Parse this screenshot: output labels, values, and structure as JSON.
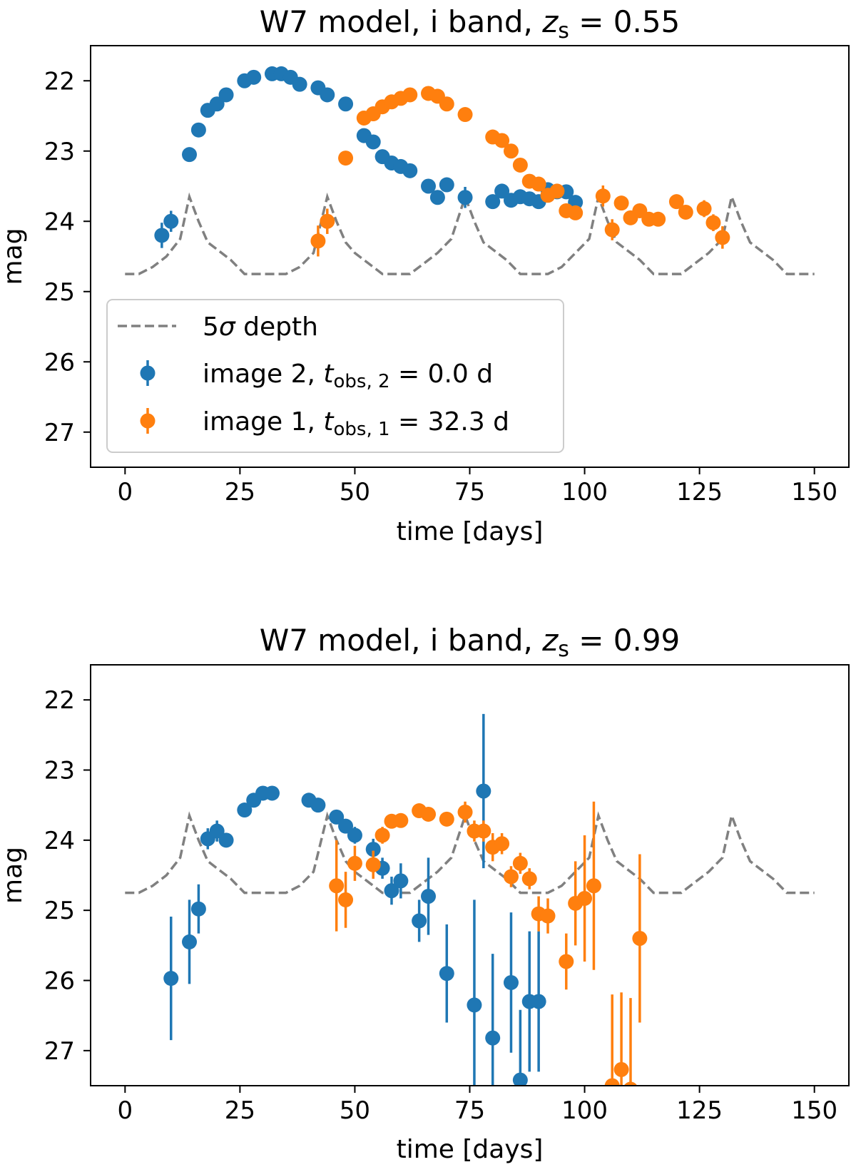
{
  "colors": {
    "image2": "#1f77b4",
    "image1": "#ff7f0e",
    "depth": "#808080"
  },
  "chart_data": [
    {
      "type": "scatter",
      "title": "W7 model, i band, z_s = 0.55",
      "title_parts": {
        "prefix": "W7 model, i band, ",
        "var": "z",
        "sub": "s",
        "suffix": " = 0.55"
      },
      "xlabel": "time [days]",
      "ylabel": "mag",
      "xlim": [
        -7.5,
        157.5
      ],
      "ylim": [
        27.5,
        21.5
      ],
      "xticks": [
        0,
        25,
        50,
        75,
        100,
        125,
        150
      ],
      "yticks": [
        22,
        23,
        24,
        25,
        26,
        27
      ],
      "legend": {
        "placement": "lower-left",
        "entries": [
          {
            "key": "depth",
            "pre": "5",
            "sym": "σ",
            "post": " depth"
          },
          {
            "key": "image2",
            "pre": "image 2, ",
            "var": "t",
            "sub": "obs, 2",
            "post": " = 0.0 d"
          },
          {
            "key": "image1",
            "pre": "image 1, ",
            "var": "t",
            "sub": "obs, 1",
            "post": " = 32.3 d"
          }
        ]
      },
      "depth": [
        [
          0,
          24.75
        ],
        [
          3,
          24.75
        ],
        [
          6,
          24.65
        ],
        [
          9,
          24.5
        ],
        [
          12,
          24.25
        ],
        [
          14,
          23.65
        ],
        [
          16,
          24.0
        ],
        [
          18,
          24.3
        ],
        [
          20,
          24.4
        ],
        [
          23,
          24.55
        ],
        [
          26,
          24.75
        ],
        [
          29,
          24.75
        ],
        [
          32,
          24.75
        ],
        [
          35,
          24.75
        ],
        [
          38,
          24.65
        ],
        [
          41,
          24.45
        ],
        [
          44,
          23.65
        ],
        [
          46,
          24.0
        ],
        [
          48,
          24.3
        ],
        [
          50,
          24.45
        ],
        [
          53,
          24.6
        ],
        [
          56,
          24.75
        ],
        [
          62,
          24.75
        ],
        [
          65,
          24.6
        ],
        [
          68,
          24.45
        ],
        [
          71,
          24.25
        ],
        [
          74,
          23.65
        ],
        [
          76,
          24.0
        ],
        [
          78,
          24.3
        ],
        [
          80,
          24.4
        ],
        [
          83,
          24.55
        ],
        [
          86,
          24.75
        ],
        [
          92,
          24.75
        ],
        [
          95,
          24.65
        ],
        [
          98,
          24.45
        ],
        [
          101,
          24.25
        ],
        [
          103,
          23.65
        ],
        [
          105,
          24.0
        ],
        [
          107,
          24.3
        ],
        [
          109,
          24.4
        ],
        [
          112,
          24.55
        ],
        [
          115,
          24.75
        ],
        [
          121,
          24.75
        ],
        [
          124,
          24.6
        ],
        [
          127,
          24.45
        ],
        [
          130,
          24.25
        ],
        [
          132,
          23.65
        ],
        [
          134,
          24.0
        ],
        [
          136,
          24.3
        ],
        [
          138,
          24.4
        ],
        [
          141,
          24.55
        ],
        [
          144,
          24.75
        ],
        [
          150,
          24.75
        ]
      ],
      "series": [
        {
          "name": "image 2",
          "key": "image2",
          "points": [
            [
              8,
              24.2,
              0.18
            ],
            [
              10,
              24.0,
              0.15
            ],
            [
              14,
              23.05,
              0.08
            ],
            [
              16,
              22.7,
              0.06
            ],
            [
              18,
              22.42,
              0.05
            ],
            [
              20,
              22.33,
              0.05
            ],
            [
              22,
              22.2,
              0.05
            ],
            [
              26,
              22.0,
              0.05
            ],
            [
              28,
              21.95,
              0.04
            ],
            [
              32,
              21.9,
              0.04
            ],
            [
              34,
              21.9,
              0.04
            ],
            [
              36,
              21.95,
              0.04
            ],
            [
              38,
              22.05,
              0.04
            ],
            [
              42,
              22.1,
              0.05
            ],
            [
              44,
              22.2,
              0.05
            ],
            [
              48,
              22.33,
              0.05
            ],
            [
              52,
              22.78,
              0.06
            ],
            [
              54,
              22.87,
              0.06
            ],
            [
              56,
              23.08,
              0.06
            ],
            [
              58,
              23.17,
              0.06
            ],
            [
              60,
              23.22,
              0.07
            ],
            [
              62,
              23.28,
              0.07
            ],
            [
              66,
              23.5,
              0.08
            ],
            [
              68,
              23.66,
              0.08
            ],
            [
              70,
              23.48,
              0.1
            ],
            [
              74,
              23.66,
              0.15
            ],
            [
              80,
              23.72,
              0.05
            ],
            [
              82,
              23.57,
              0.05
            ],
            [
              84,
              23.7,
              0.05
            ],
            [
              86,
              23.65,
              0.05
            ],
            [
              88,
              23.68,
              0.05
            ],
            [
              90,
              23.72,
              0.05
            ],
            [
              92,
              23.55,
              0.05
            ],
            [
              94,
              23.58,
              0.05
            ],
            [
              96,
              23.58,
              0.05
            ],
            [
              98,
              23.73,
              0.06
            ]
          ]
        },
        {
          "name": "image 1",
          "key": "image1",
          "points": [
            [
              42,
              24.28,
              0.22
            ],
            [
              44,
              24.0,
              0.18
            ],
            [
              48,
              23.1,
              0.08
            ],
            [
              52,
              22.53,
              0.06
            ],
            [
              54,
              22.47,
              0.05
            ],
            [
              56,
              22.37,
              0.05
            ],
            [
              58,
              22.3,
              0.05
            ],
            [
              60,
              22.25,
              0.05
            ],
            [
              62,
              22.2,
              0.05
            ],
            [
              66,
              22.18,
              0.05
            ],
            [
              68,
              22.22,
              0.05
            ],
            [
              70,
              22.33,
              0.05
            ],
            [
              74,
              22.48,
              0.05
            ],
            [
              80,
              22.8,
              0.05
            ],
            [
              82,
              22.85,
              0.05
            ],
            [
              84,
              23.0,
              0.05
            ],
            [
              86,
              23.2,
              0.05
            ],
            [
              88,
              23.43,
              0.05
            ],
            [
              90,
              23.47,
              0.05
            ],
            [
              92,
              23.63,
              0.05
            ],
            [
              94,
              23.57,
              0.05
            ],
            [
              96,
              23.85,
              0.06
            ],
            [
              98,
              23.88,
              0.06
            ],
            [
              104,
              23.64,
              0.15
            ],
            [
              106,
              24.12,
              0.15
            ],
            [
              108,
              23.74,
              0.1
            ],
            [
              110,
              23.95,
              0.08
            ],
            [
              112,
              23.85,
              0.06
            ],
            [
              114,
              23.97,
              0.06
            ],
            [
              116,
              23.97,
              0.06
            ],
            [
              120,
              23.72,
              0.06
            ],
            [
              122,
              23.87,
              0.06
            ],
            [
              126,
              23.82,
              0.12
            ],
            [
              128,
              24.02,
              0.12
            ],
            [
              130,
              24.23,
              0.16
            ]
          ]
        }
      ]
    },
    {
      "type": "scatter",
      "title": "W7 model, i band, z_s = 0.99",
      "title_parts": {
        "prefix": "W7 model, i band, ",
        "var": "z",
        "sub": "s",
        "suffix": " = 0.99"
      },
      "xlabel": "time [days]",
      "ylabel": "mag",
      "xlim": [
        -7.5,
        157.5
      ],
      "ylim": [
        27.5,
        21.5
      ],
      "xticks": [
        0,
        25,
        50,
        75,
        100,
        125,
        150
      ],
      "yticks": [
        22,
        23,
        24,
        25,
        26,
        27
      ],
      "depth": [
        [
          0,
          24.75
        ],
        [
          3,
          24.75
        ],
        [
          6,
          24.65
        ],
        [
          9,
          24.5
        ],
        [
          12,
          24.25
        ],
        [
          14,
          23.65
        ],
        [
          16,
          24.0
        ],
        [
          18,
          24.3
        ],
        [
          20,
          24.4
        ],
        [
          23,
          24.55
        ],
        [
          26,
          24.75
        ],
        [
          29,
          24.75
        ],
        [
          32,
          24.75
        ],
        [
          35,
          24.75
        ],
        [
          38,
          24.65
        ],
        [
          41,
          24.45
        ],
        [
          44,
          23.65
        ],
        [
          46,
          24.0
        ],
        [
          48,
          24.3
        ],
        [
          50,
          24.45
        ],
        [
          53,
          24.6
        ],
        [
          56,
          24.75
        ],
        [
          62,
          24.75
        ],
        [
          65,
          24.6
        ],
        [
          68,
          24.45
        ],
        [
          71,
          24.25
        ],
        [
          74,
          23.65
        ],
        [
          76,
          24.0
        ],
        [
          78,
          24.3
        ],
        [
          80,
          24.4
        ],
        [
          83,
          24.55
        ],
        [
          86,
          24.75
        ],
        [
          92,
          24.75
        ],
        [
          95,
          24.65
        ],
        [
          98,
          24.45
        ],
        [
          101,
          24.25
        ],
        [
          103,
          23.65
        ],
        [
          105,
          24.0
        ],
        [
          107,
          24.3
        ],
        [
          109,
          24.4
        ],
        [
          112,
          24.55
        ],
        [
          115,
          24.75
        ],
        [
          121,
          24.75
        ],
        [
          124,
          24.6
        ],
        [
          127,
          24.45
        ],
        [
          130,
          24.25
        ],
        [
          132,
          23.65
        ],
        [
          134,
          24.0
        ],
        [
          136,
          24.3
        ],
        [
          138,
          24.4
        ],
        [
          141,
          24.55
        ],
        [
          144,
          24.75
        ],
        [
          150,
          24.75
        ]
      ],
      "series": [
        {
          "name": "image 2",
          "key": "image2",
          "points": [
            [
              10,
              25.97,
              0.88
            ],
            [
              14,
              25.45,
              0.6
            ],
            [
              16,
              24.98,
              0.35
            ],
            [
              18,
              23.98,
              0.15
            ],
            [
              20,
              23.87,
              0.15
            ],
            [
              22,
              24.0,
              0.1
            ],
            [
              26,
              23.57,
              0.07
            ],
            [
              28,
              23.43,
              0.07
            ],
            [
              30,
              23.33,
              0.07
            ],
            [
              32,
              23.33,
              0.06
            ],
            [
              40,
              23.43,
              0.07
            ],
            [
              42,
              23.5,
              0.07
            ],
            [
              46,
              23.67,
              0.1
            ],
            [
              48,
              23.8,
              0.1
            ],
            [
              50,
              23.93,
              0.12
            ],
            [
              54,
              24.13,
              0.15
            ],
            [
              56,
              24.4,
              0.15
            ],
            [
              58,
              24.72,
              0.2
            ],
            [
              60,
              24.58,
              0.25
            ],
            [
              64,
              25.15,
              0.3
            ],
            [
              66,
              24.8,
              0.55
            ],
            [
              70,
              25.9,
              0.7
            ],
            [
              76,
              26.35,
              1.5
            ],
            [
              78,
              23.3,
              1.1
            ],
            [
              80,
              26.82,
              1.2
            ],
            [
              84,
              26.03,
              1.0
            ],
            [
              86,
              27.42,
              1.0
            ],
            [
              88,
              26.3,
              1.0
            ],
            [
              90,
              26.3,
              1.0
            ]
          ]
        },
        {
          "name": "image 1",
          "key": "image1",
          "points": [
            [
              46,
              24.65,
              0.65
            ],
            [
              48,
              24.85,
              0.4
            ],
            [
              50,
              24.33,
              0.25
            ],
            [
              54,
              24.35,
              0.2
            ],
            [
              56,
              23.93,
              0.12
            ],
            [
              58,
              23.73,
              0.1
            ],
            [
              60,
              23.72,
              0.1
            ],
            [
              64,
              23.58,
              0.08
            ],
            [
              66,
              23.63,
              0.08
            ],
            [
              70,
              23.7,
              0.1
            ],
            [
              74,
              23.6,
              0.15
            ],
            [
              76,
              23.87,
              0.15
            ],
            [
              78,
              23.87,
              0.15
            ],
            [
              80,
              24.1,
              0.2
            ],
            [
              82,
              24.05,
              0.15
            ],
            [
              84,
              24.52,
              0.15
            ],
            [
              86,
              24.33,
              0.15
            ],
            [
              88,
              24.55,
              0.15
            ],
            [
              90,
              25.05,
              0.25
            ],
            [
              92,
              25.08,
              0.25
            ],
            [
              96,
              25.73,
              0.4
            ],
            [
              98,
              24.9,
              0.6
            ],
            [
              100,
              24.83,
              0.9
            ],
            [
              102,
              24.65,
              1.2
            ],
            [
              106,
              27.5,
              1.3
            ],
            [
              108,
              27.27,
              1.1
            ],
            [
              110,
              27.55,
              1.3
            ],
            [
              112,
              25.4,
              1.2
            ]
          ]
        }
      ]
    }
  ]
}
